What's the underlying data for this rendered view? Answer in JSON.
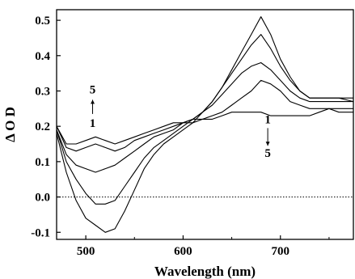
{
  "chart_data": {
    "type": "line",
    "xlabel": "Wavelength (nm)",
    "ylabel": "Δ O D",
    "xlim": [
      470,
      775
    ],
    "ylim": [
      -0.12,
      0.53
    ],
    "x_ticks": [
      500,
      600,
      700
    ],
    "y_ticks": [
      -0.1,
      0.0,
      0.1,
      0.2,
      0.3,
      0.4,
      0.5
    ],
    "y_tick_labels": [
      "-0.1",
      "0.0",
      "0.1",
      "0.2",
      "0.3",
      "0.4",
      "0.5"
    ],
    "x_tick_labels": [
      "500",
      "600",
      "700"
    ],
    "reference_line": {
      "y": 0.0,
      "style": "dotted"
    },
    "grid": false,
    "series": [
      {
        "x": [
          470,
          480,
          490,
          500,
          510,
          520,
          530,
          540,
          550,
          560,
          570,
          580,
          590,
          600,
          610,
          620,
          630,
          640,
          650,
          660,
          670,
          680,
          690,
          700,
          710,
          720,
          730,
          740,
          750,
          760,
          775
        ],
        "y": [
          0.2,
          0.15,
          0.15,
          0.16,
          0.17,
          0.16,
          0.15,
          0.16,
          0.17,
          0.18,
          0.19,
          0.2,
          0.21,
          0.21,
          0.22,
          0.22,
          0.22,
          0.23,
          0.24,
          0.24,
          0.24,
          0.24,
          0.23,
          0.23,
          0.23,
          0.23,
          0.23,
          0.24,
          0.25,
          0.24,
          0.24
        ]
      },
      {
        "x": [
          470,
          480,
          490,
          500,
          510,
          520,
          530,
          540,
          550,
          560,
          570,
          580,
          590,
          600,
          610,
          620,
          630,
          640,
          650,
          660,
          670,
          680,
          690,
          700,
          710,
          720,
          730,
          740,
          750,
          760,
          775
        ],
        "y": [
          0.2,
          0.14,
          0.13,
          0.14,
          0.15,
          0.14,
          0.13,
          0.14,
          0.16,
          0.17,
          0.18,
          0.19,
          0.2,
          0.21,
          0.21,
          0.22,
          0.23,
          0.24,
          0.26,
          0.28,
          0.3,
          0.33,
          0.32,
          0.3,
          0.27,
          0.26,
          0.25,
          0.25,
          0.25,
          0.25,
          0.25
        ]
      },
      {
        "x": [
          470,
          480,
          490,
          500,
          510,
          520,
          530,
          540,
          550,
          560,
          570,
          580,
          590,
          600,
          610,
          620,
          630,
          640,
          650,
          660,
          670,
          680,
          690,
          700,
          710,
          720,
          730,
          740,
          750,
          760,
          775
        ],
        "y": [
          0.19,
          0.12,
          0.09,
          0.08,
          0.07,
          0.08,
          0.09,
          0.11,
          0.13,
          0.15,
          0.17,
          0.18,
          0.19,
          0.21,
          0.22,
          0.24,
          0.26,
          0.29,
          0.32,
          0.35,
          0.37,
          0.38,
          0.36,
          0.33,
          0.3,
          0.28,
          0.27,
          0.27,
          0.27,
          0.27,
          0.27
        ]
      },
      {
        "x": [
          470,
          480,
          490,
          500,
          510,
          520,
          530,
          540,
          550,
          560,
          570,
          580,
          590,
          600,
          610,
          620,
          630,
          640,
          650,
          660,
          670,
          680,
          690,
          700,
          710,
          720,
          730,
          740,
          750,
          760,
          775
        ],
        "y": [
          0.19,
          0.1,
          0.05,
          0.01,
          -0.02,
          -0.02,
          -0.01,
          0.03,
          0.07,
          0.11,
          0.14,
          0.16,
          0.18,
          0.2,
          0.22,
          0.24,
          0.27,
          0.31,
          0.35,
          0.39,
          0.43,
          0.46,
          0.42,
          0.37,
          0.33,
          0.3,
          0.28,
          0.28,
          0.28,
          0.28,
          0.28
        ]
      },
      {
        "x": [
          470,
          480,
          490,
          500,
          510,
          520,
          530,
          540,
          550,
          560,
          570,
          580,
          590,
          600,
          610,
          620,
          630,
          640,
          650,
          660,
          670,
          680,
          690,
          700,
          710,
          720,
          730,
          740,
          750,
          760,
          775
        ],
        "y": [
          0.18,
          0.07,
          -0.01,
          -0.06,
          -0.08,
          -0.1,
          -0.09,
          -0.04,
          0.02,
          0.08,
          0.12,
          0.15,
          0.17,
          0.19,
          0.21,
          0.24,
          0.27,
          0.31,
          0.36,
          0.41,
          0.46,
          0.51,
          0.46,
          0.39,
          0.34,
          0.3,
          0.28,
          0.28,
          0.28,
          0.28,
          0.27
        ]
      }
    ],
    "annotations": [
      {
        "text": "5",
        "x": 507,
        "y": 0.305
      },
      {
        "text": "1",
        "x": 507,
        "y": 0.21
      },
      {
        "text": "1",
        "x": 687,
        "y": 0.22
      },
      {
        "text": "5",
        "x": 687,
        "y": 0.125
      }
    ],
    "arrows": [
      {
        "x": 507,
        "y_from": 0.235,
        "y_to": 0.275
      },
      {
        "x": 687,
        "y_from": 0.195,
        "y_to": 0.145
      }
    ]
  }
}
